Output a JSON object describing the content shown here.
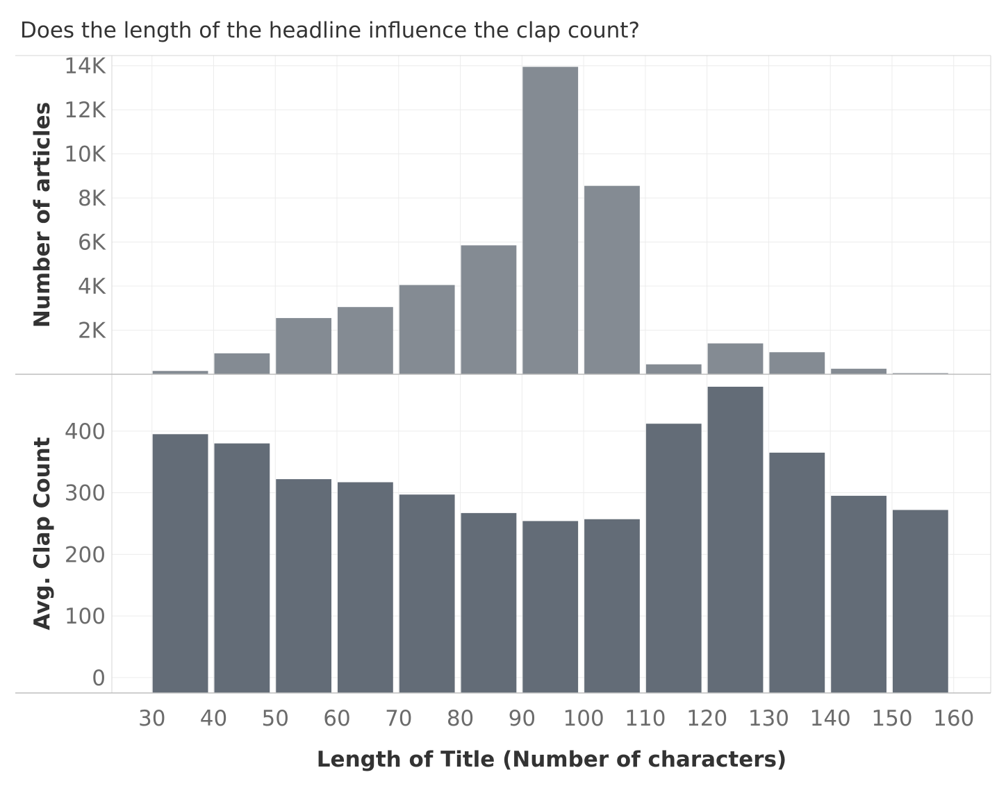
{
  "title": "Does the length of the headline influence the clap count?",
  "colors": {
    "top_bar": "#848b93",
    "bottom_bar": "#636c77",
    "grid": "#ececec",
    "frame": "#d4d4d4",
    "tick_text": "#6b6b6b",
    "title_text": "#333333"
  },
  "chart_data": [
    {
      "type": "bar",
      "title": "Does the length of the headline influence the clap count?",
      "xlabel": "Length of Title (Number of characters)",
      "ylabel": "Number of articles",
      "bin_start": [
        30,
        40,
        50,
        60,
        70,
        80,
        90,
        100,
        110,
        120,
        130,
        140,
        150
      ],
      "bin_width": 10,
      "values": [
        150,
        950,
        2550,
        3050,
        4050,
        5850,
        13950,
        8550,
        450,
        1400,
        1000,
        250,
        50
      ],
      "ylim": [
        0,
        14400
      ],
      "yticks": [
        2000,
        4000,
        6000,
        8000,
        10000,
        12000,
        14000
      ],
      "ytick_labels": [
        "2K",
        "4K",
        "6K",
        "8K",
        "10K",
        "12K",
        "14K"
      ],
      "grid": true
    },
    {
      "type": "bar",
      "xlabel": "Length of Title (Number of characters)",
      "ylabel": "Avg. Clap Count",
      "bin_start": [
        30,
        40,
        50,
        60,
        70,
        80,
        90,
        100,
        110,
        120,
        130,
        140,
        150
      ],
      "bin_width": 10,
      "values": [
        395,
        380,
        322,
        317,
        297,
        267,
        254,
        257,
        412,
        472,
        365,
        295,
        272
      ],
      "ylim": [
        -25,
        490
      ],
      "yticks": [
        0,
        100,
        200,
        300,
        400
      ],
      "ytick_labels": [
        "0",
        "100",
        "200",
        "300",
        "400"
      ],
      "grid": true
    }
  ],
  "x_axis": {
    "ticks": [
      30,
      40,
      50,
      60,
      70,
      80,
      90,
      100,
      110,
      120,
      130,
      140,
      150,
      160
    ],
    "tick_labels": [
      "30",
      "40",
      "50",
      "60",
      "70",
      "80",
      "90",
      "100",
      "110",
      "120",
      "130",
      "140",
      "150",
      "160"
    ],
    "xlim": [
      23.5,
      166
    ]
  }
}
